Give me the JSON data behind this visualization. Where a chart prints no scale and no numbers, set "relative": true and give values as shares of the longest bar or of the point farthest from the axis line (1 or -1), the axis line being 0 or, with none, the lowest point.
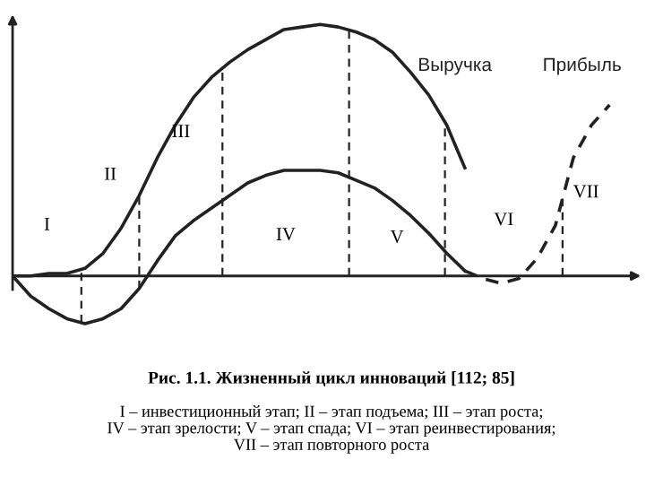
{
  "chart_data": {
    "type": "line",
    "relative": true,
    "title": "Рис. 1.1. Жизненный цикл инноваций [112; 85]",
    "subtitle": "I – инвестиционный этап; II – этап подъема; III – этап роста;\nIV – этап зрелости; V – этап спада; VI – этап реинвестирования;\nVII – этап повторного роста",
    "categories": [
      null,
      null,
      null,
      null,
      null,
      null,
      null,
      null,
      null,
      null,
      null,
      null,
      null,
      null,
      null,
      null,
      null,
      null,
      null,
      null,
      null,
      null,
      null,
      null,
      null,
      null,
      null,
      null,
      null,
      null,
      null,
      null,
      null,
      null
    ],
    "series": [
      {
        "name": "Выручка",
        "color": "#222222",
        "line_style": "solid",
        "values": [
          0,
          0,
          0.01,
          0.01,
          0.03,
          0.09,
          0.19,
          0.32,
          0.47,
          0.6,
          0.71,
          0.79,
          0.85,
          0.9,
          0.94,
          0.98,
          0.99,
          1.0,
          0.99,
          0.97,
          0.94,
          0.89,
          0.81,
          0.72,
          0.6,
          0.43,
          null,
          null,
          null,
          null,
          null,
          null,
          null,
          null
        ]
      },
      {
        "color": "#222222",
        "line_style": "solid",
        "values": [
          0,
          -0.08,
          -0.13,
          -0.17,
          -0.19,
          -0.17,
          -0.13,
          -0.05,
          0.06,
          0.16,
          0.22,
          0.27,
          0.32,
          0.37,
          0.4,
          0.42,
          0.42,
          0.42,
          0.41,
          0.38,
          0.35,
          0.3,
          0.24,
          0.17,
          0.09,
          0.02,
          null,
          null,
          null,
          null,
          null,
          null,
          null,
          null
        ]
      },
      {
        "name": "Прибыль",
        "color": "#222222",
        "line_style": "dashed",
        "values": [
          null,
          null,
          null,
          null,
          null,
          null,
          null,
          null,
          null,
          null,
          null,
          null,
          null,
          null,
          null,
          null,
          null,
          null,
          null,
          null,
          null,
          null,
          null,
          null,
          null,
          0.02,
          -0.01,
          -0.03,
          -0.01,
          0.07,
          0.2,
          0.47,
          0.6,
          0.68
        ]
      }
    ],
    "annotations": [
      "I",
      "II",
      "III",
      "IV",
      "V",
      "VI",
      "VII"
    ]
  }
}
